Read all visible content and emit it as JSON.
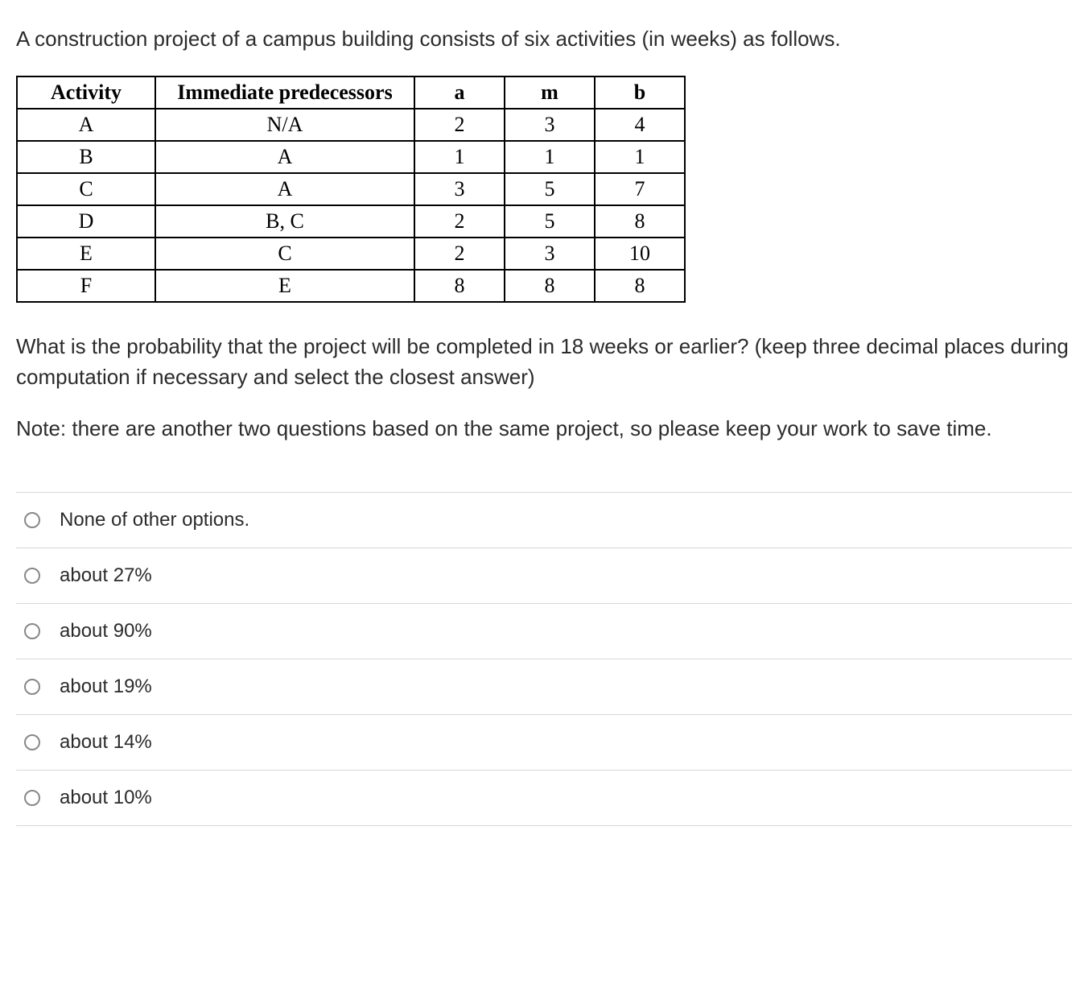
{
  "intro": "A construction project of a campus building consists of six activities (in weeks) as follows.",
  "table": {
    "columns": [
      "Activity",
      "Immediate predecessors",
      "a",
      "m",
      "b"
    ],
    "rows": [
      [
        "A",
        "N/A",
        "2",
        "3",
        "4"
      ],
      [
        "B",
        "A",
        "1",
        "1",
        "1"
      ],
      [
        "C",
        "A",
        "3",
        "5",
        "7"
      ],
      [
        "D",
        "B, C",
        "2",
        "5",
        "8"
      ],
      [
        "E",
        "C",
        "2",
        "3",
        "10"
      ],
      [
        "F",
        "E",
        "8",
        "8",
        "8"
      ]
    ]
  },
  "question": "What is the probability that the project will be completed in 18 weeks or earlier? (keep three decimal places during computation if necessary and select the closest answer)",
  "note": "Note: there are another two questions based on the same project, so please keep your work to save time.",
  "options": [
    "None of other options.",
    "about 27%",
    "about 90%",
    "about 19%",
    "about 14%",
    "about 10%"
  ]
}
